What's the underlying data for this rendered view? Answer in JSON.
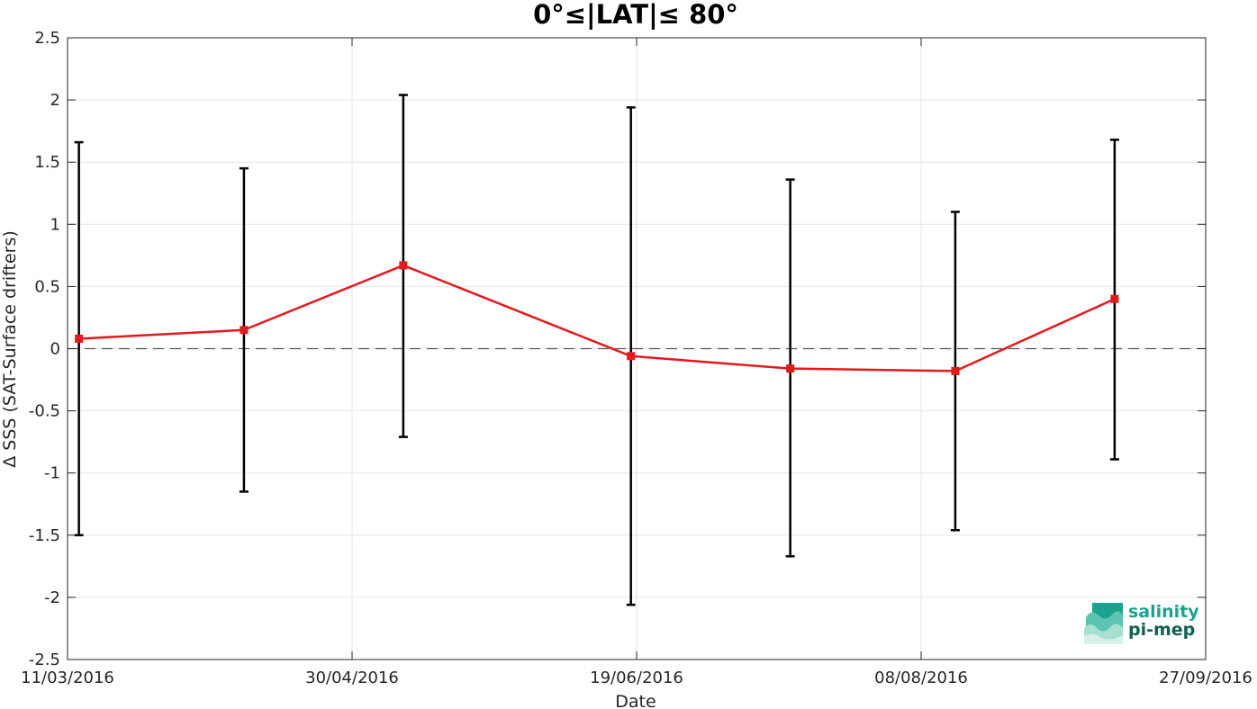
{
  "chart_data": {
    "type": "line",
    "title": "0°≤|LAT|≤ 80°",
    "xlabel": "Date",
    "ylabel": "Δ SSS (SAT-Surface drifters)",
    "xlim": [
      "2016-03-11",
      "2016-09-27"
    ],
    "ylim": [
      -2.5,
      2.5
    ],
    "x_ticks": [
      "11/03/2016",
      "30/04/2016",
      "19/06/2016",
      "08/08/2016",
      "27/09/2016"
    ],
    "y_ticks": [
      "2.5",
      "2",
      "1.5",
      "1",
      "0.5",
      "0",
      "-0.5",
      "-1",
      "-1.5",
      "-2",
      "-2.5"
    ],
    "y_tick_values": [
      2.5,
      2,
      1.5,
      1,
      0.5,
      0,
      -0.5,
      -1,
      -1.5,
      -2,
      -2.5
    ],
    "grid": true,
    "reference_line": {
      "y": 0,
      "style": "dashed",
      "color": "#555555"
    },
    "series": [
      {
        "color": "#e31a1c",
        "marker": "square",
        "points": [
          {
            "x": "2016-03-13",
            "y": 0.08,
            "err_low": -1.5,
            "err_high": 1.66
          },
          {
            "x": "2016-04-11",
            "y": 0.15,
            "err_low": -1.15,
            "err_high": 1.45
          },
          {
            "x": "2016-05-09",
            "y": 0.67,
            "err_low": -0.71,
            "err_high": 2.04
          },
          {
            "x": "2016-06-18",
            "y": -0.06,
            "err_low": -2.06,
            "err_high": 1.94
          },
          {
            "x": "2016-07-16",
            "y": -0.16,
            "err_low": -1.67,
            "err_high": 1.36
          },
          {
            "x": "2016-08-14",
            "y": -0.18,
            "err_low": -1.46,
            "err_high": 1.1
          },
          {
            "x": "2016-09-11",
            "y": 0.4,
            "err_low": -0.89,
            "err_high": 1.68
          }
        ]
      }
    ]
  },
  "logo": {
    "line1": "salinity",
    "line2": "pi-mep",
    "color": "#1aa38f"
  }
}
